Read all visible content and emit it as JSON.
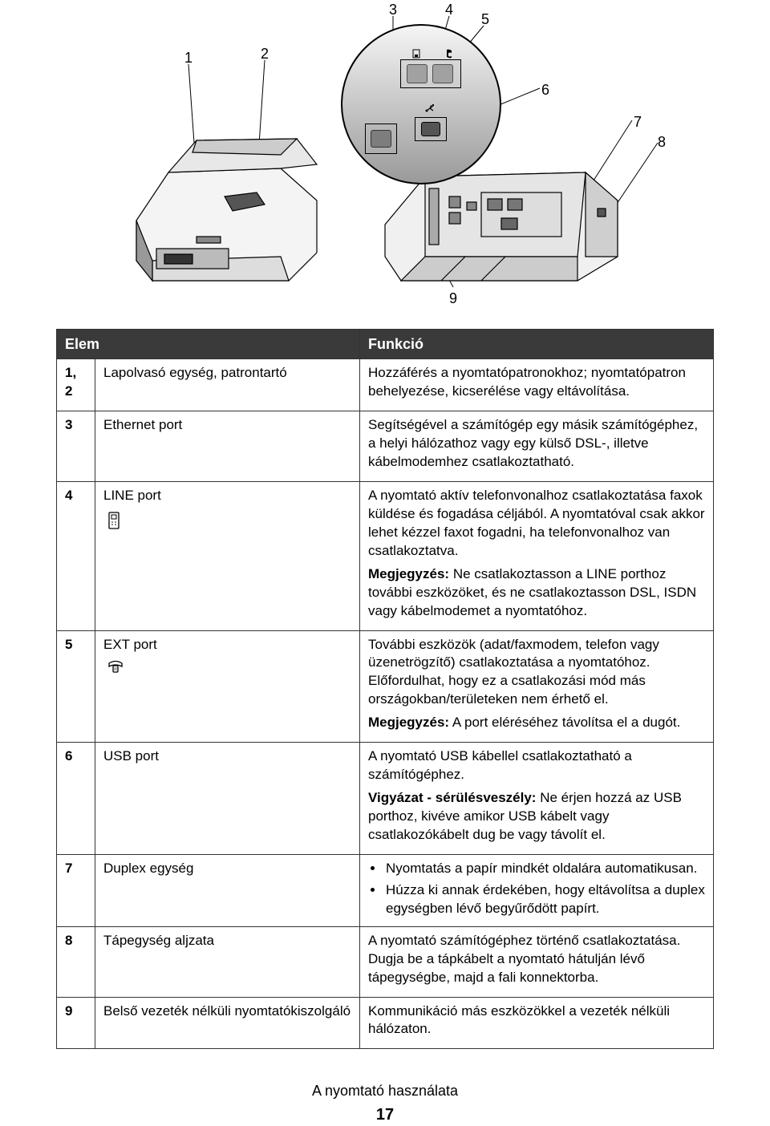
{
  "diagram": {
    "callouts": [
      "1",
      "2",
      "3",
      "4",
      "5",
      "6",
      "7",
      "8",
      "9"
    ]
  },
  "table": {
    "headers": {
      "item": "Elem",
      "func": "Funkció"
    },
    "rows": [
      {
        "num": "1, 2",
        "name": "Lapolvasó egység, patrontartó",
        "func_paras": [
          "Hozzáférés a nyomtatópatronokhoz; nyomtatópatron behelyezése, kicserélése vagy eltávolítása."
        ]
      },
      {
        "num": "3",
        "name": "Ethernet port",
        "func_paras": [
          "Segítségével a számítógép egy másik számítógéphez, a helyi hálózathoz vagy egy külső DSL-, illetve kábelmodemhez csatlakoztatható."
        ]
      },
      {
        "num": "4",
        "name": "LINE port",
        "icon": "line",
        "func_paras": [
          "A nyomtató aktív telefonvonalhoz csatlakoztatása faxok küldése és fogadása céljából. A nyomtatóval csak akkor lehet kézzel faxot fogadni, ha telefonvonalhoz van csatlakoztatva."
        ],
        "func_note_label": "Megjegyzés:",
        "func_note": "Ne csatlakoztasson a LINE porthoz további eszközöket, és ne csatlakoztasson DSL, ISDN vagy kábelmodemet a nyomtatóhoz."
      },
      {
        "num": "5",
        "name": "EXT port",
        "icon": "ext",
        "func_paras": [
          "További eszközök (adat/faxmodem, telefon vagy üzenetrögzítő) csatlakoztatása a nyomtatóhoz. Előfordulhat, hogy ez a csatlakozási mód más országokban/területeken nem érhető el."
        ],
        "func_note_label": "Megjegyzés:",
        "func_note": "A port eléréséhez távolítsa el a dugót."
      },
      {
        "num": "6",
        "name": "USB port",
        "func_paras": [
          "A nyomtató USB kábellel csatlakoztatható a számítógéphez."
        ],
        "func_warn_label": "Vigyázat - sérülésveszély:",
        "func_warn": "Ne érjen hozzá az USB porthoz, kivéve amikor USB kábelt vagy csatlakozókábelt dug be vagy távolít el."
      },
      {
        "num": "7",
        "name": "Duplex egység",
        "func_bullets": [
          "Nyomtatás a papír mindkét oldalára automatikusan.",
          "Húzza ki annak érdekében, hogy eltávolítsa a duplex egységben lévő begyűrődött papírt."
        ]
      },
      {
        "num": "8",
        "name": "Tápegység aljzata",
        "func_paras": [
          "A nyomtató számítógéphez történő csatlakoztatása. Dugja be a tápkábelt a nyomtató hátulján lévő tápegységbe, majd a fali konnektorba."
        ]
      },
      {
        "num": "9",
        "name": "Belső vezeték nélküli nyomtatókiszolgáló",
        "func_paras": [
          "Kommunikáció más eszközökkel a vezeték nélküli hálózaton."
        ]
      }
    ]
  },
  "footer": {
    "title": "A nyomtató használata",
    "page": "17"
  },
  "colors": {
    "header_bg": "#3a3a3a",
    "header_fg": "#ffffff",
    "border": "#333333",
    "text": "#000000"
  }
}
